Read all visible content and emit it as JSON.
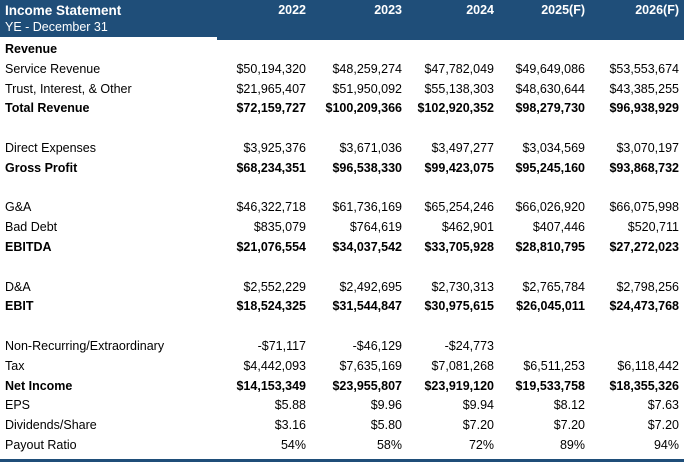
{
  "colors": {
    "header_bg": "#1F4E79",
    "header_text": "#FFFFFF",
    "body_text": "#000000",
    "bottom_bar": "#1F4E79"
  },
  "chart_data": {
    "type": "table",
    "title": "Income Statement",
    "subtitle": "YE - December 31",
    "columns": [
      "2022",
      "2023",
      "2024",
      "2025(F)",
      "2026(F)"
    ],
    "rows": [
      {
        "label": "Revenue",
        "bold": true,
        "values": [
          "",
          "",
          "",
          "",
          ""
        ]
      },
      {
        "label": "Service Revenue",
        "bold": false,
        "values": [
          "$50,194,320",
          "$48,259,274",
          "$47,782,049",
          "$49,649,086",
          "$53,553,674"
        ]
      },
      {
        "label": "Trust, Interest, & Other",
        "bold": false,
        "values": [
          "$21,965,407",
          "$51,950,092",
          "$55,138,303",
          "$48,630,644",
          "$43,385,255"
        ]
      },
      {
        "label": "Total Revenue",
        "bold": true,
        "values": [
          "$72,159,727",
          "$100,209,366",
          "$102,920,352",
          "$98,279,730",
          "$96,938,929"
        ]
      },
      {
        "label": "",
        "bold": false,
        "values": [
          "",
          "",
          "",
          "",
          ""
        ]
      },
      {
        "label": "Direct Expenses",
        "bold": false,
        "values": [
          "$3,925,376",
          "$3,671,036",
          "$3,497,277",
          "$3,034,569",
          "$3,070,197"
        ]
      },
      {
        "label": "Gross Profit",
        "bold": true,
        "values": [
          "$68,234,351",
          "$96,538,330",
          "$99,423,075",
          "$95,245,160",
          "$93,868,732"
        ]
      },
      {
        "label": "",
        "bold": false,
        "values": [
          "",
          "",
          "",
          "",
          ""
        ]
      },
      {
        "label": "G&A",
        "bold": false,
        "values": [
          "$46,322,718",
          "$61,736,169",
          "$65,254,246",
          "$66,026,920",
          "$66,075,998"
        ]
      },
      {
        "label": "Bad Debt",
        "bold": false,
        "values": [
          "$835,079",
          "$764,619",
          "$462,901",
          "$407,446",
          "$520,711"
        ]
      },
      {
        "label": "EBITDA",
        "bold": true,
        "values": [
          "$21,076,554",
          "$34,037,542",
          "$33,705,928",
          "$28,810,795",
          "$27,272,023"
        ]
      },
      {
        "label": "",
        "bold": false,
        "values": [
          "",
          "",
          "",
          "",
          ""
        ]
      },
      {
        "label": "D&A",
        "bold": false,
        "values": [
          "$2,552,229",
          "$2,492,695",
          "$2,730,313",
          "$2,765,784",
          "$2,798,256"
        ]
      },
      {
        "label": "EBIT",
        "bold": true,
        "values": [
          "$18,524,325",
          "$31,544,847",
          "$30,975,615",
          "$26,045,011",
          "$24,473,768"
        ]
      },
      {
        "label": "",
        "bold": false,
        "values": [
          "",
          "",
          "",
          "",
          ""
        ]
      },
      {
        "label": "Non-Recurring/Extraordinary",
        "bold": false,
        "values": [
          "-$71,117",
          "-$46,129",
          "-$24,773",
          "",
          ""
        ]
      },
      {
        "label": "Tax",
        "bold": false,
        "values": [
          "$4,442,093",
          "$7,635,169",
          "$7,081,268",
          "$6,511,253",
          "$6,118,442"
        ]
      },
      {
        "label": "Net Income",
        "bold": true,
        "values": [
          "$14,153,349",
          "$23,955,807",
          "$23,919,120",
          "$19,533,758",
          "$18,355,326"
        ]
      },
      {
        "label": "EPS",
        "bold": false,
        "values": [
          "$5.88",
          "$9.96",
          "$9.94",
          "$8.12",
          "$7.63"
        ]
      },
      {
        "label": "Dividends/Share",
        "bold": false,
        "values": [
          "$3.16",
          "$5.80",
          "$7.20",
          "$7.20",
          "$7.20"
        ]
      },
      {
        "label": "Payout Ratio",
        "bold": false,
        "values": [
          "54%",
          "58%",
          "72%",
          "89%",
          "94%"
        ]
      }
    ]
  }
}
